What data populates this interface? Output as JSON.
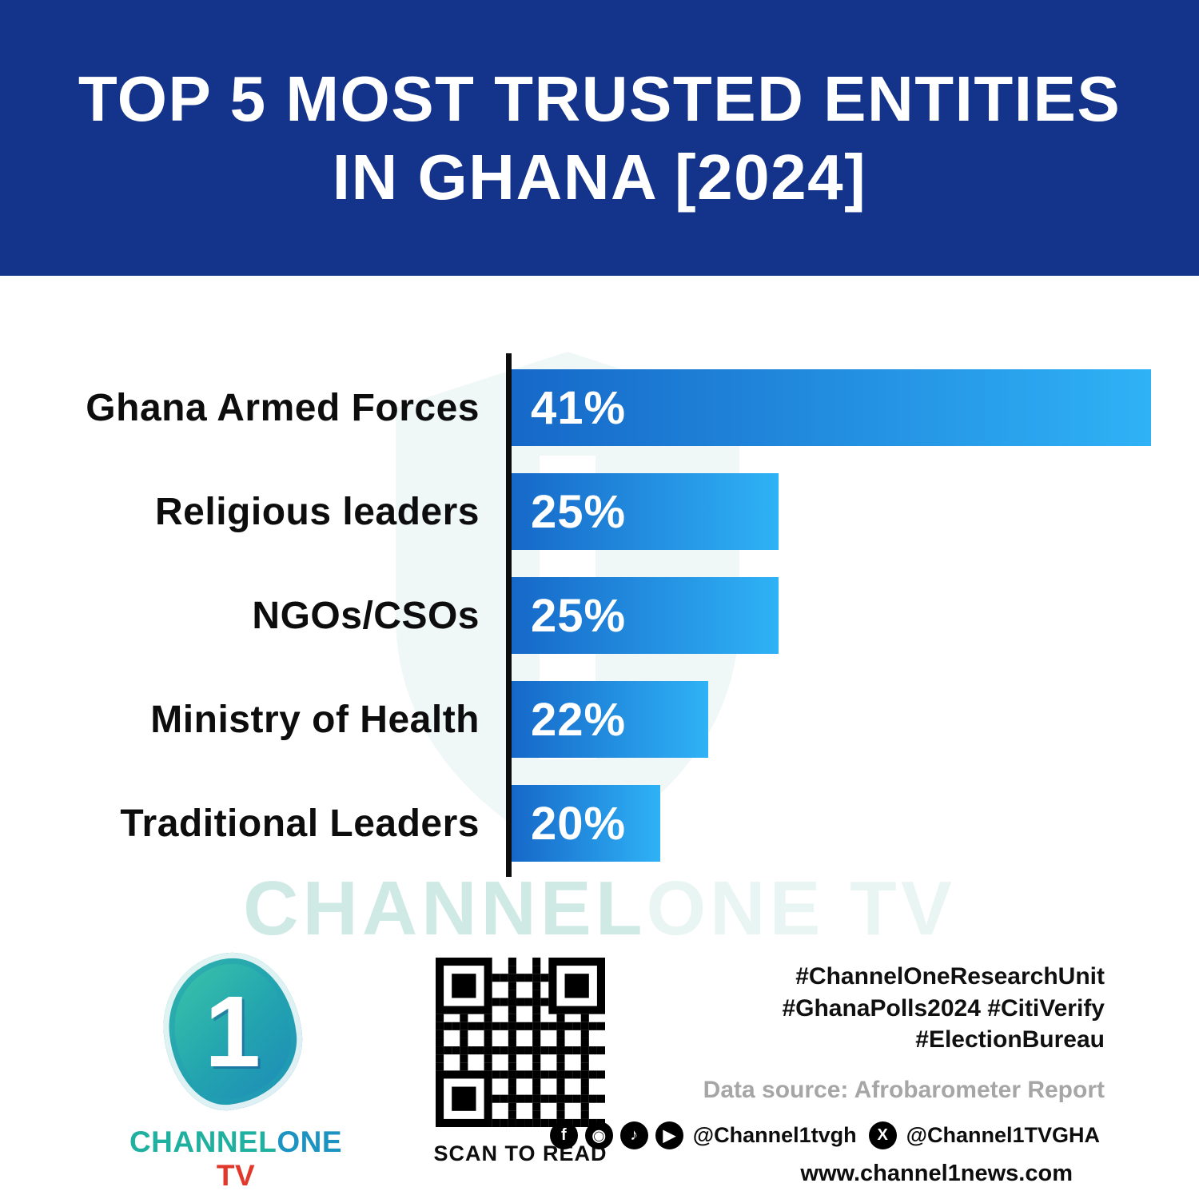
{
  "header": {
    "title_line1": "TOP 5 MOST TRUSTED ENTITIES",
    "title_line2": "IN GHANA [2024]"
  },
  "chart_data": {
    "type": "bar",
    "orientation": "horizontal",
    "title": "TOP 5 MOST TRUSTED ENTITIES IN GHANA [2024]",
    "categories": [
      "Ghana Armed Forces",
      "Religious leaders",
      "NGOs/CSOs",
      "Ministry of Health",
      "Traditional Leaders"
    ],
    "values": [
      41,
      25,
      25,
      22,
      20
    ],
    "value_labels": [
      "41%",
      "25%",
      "25%",
      "22%",
      "20%"
    ],
    "bar_widths_pct": [
      100,
      41.7,
      41.7,
      30.7,
      23.3
    ],
    "bar_color_start": "#1668c8",
    "bar_color_end": "#2fb2f6",
    "axis_color": "#0d0d0d",
    "grid": false,
    "legend": false
  },
  "watermark": {
    "part1": "CHANNEL",
    "part2": "ONE TV"
  },
  "footer": {
    "logo_numeral": "1",
    "logo_word_channel": "CHANNEL",
    "logo_word_one": "ONE",
    "logo_word_tv": " TV",
    "qr_caption": "SCAN TO READ",
    "hashtags_line1": "#ChannelOneResearchUnit",
    "hashtags_line2": "#GhanaPolls2024 #CitiVerify",
    "hashtags_line3": "#ElectionBureau",
    "data_source": "Data source: Afrobarometer Report",
    "social_handle_main": "@Channel1tvgh",
    "social_handle_x": "@Channel1TVGHA",
    "website": "www.channel1news.com"
  },
  "icons": {
    "facebook": "f",
    "instagram": "◉",
    "tiktok": "♪",
    "youtube": "▶",
    "x": "X"
  },
  "colors": {
    "banner_blue": "#14338a",
    "bar_gradient_start": "#1668c8",
    "bar_gradient_end": "#2fb2f6",
    "logo_teal": "#1fb0a0",
    "logo_blue": "#1d93c2",
    "tv_red": "#e2382c"
  }
}
